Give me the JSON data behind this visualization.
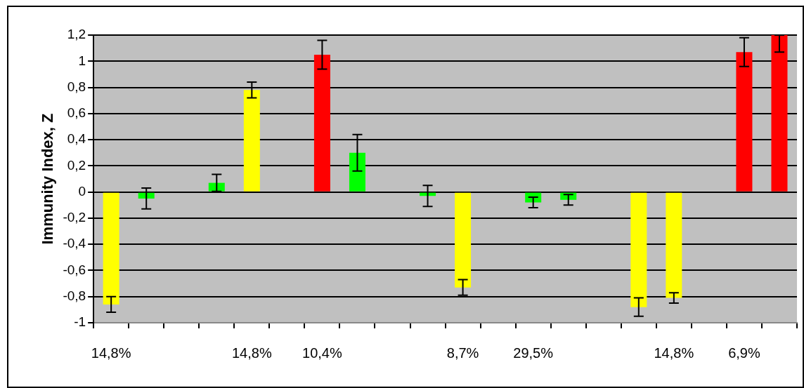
{
  "chart_data": {
    "type": "bar",
    "ylabel": "Immunity Index, Z",
    "categories": [
      "14,8%",
      null,
      null,
      null,
      "14,8%",
      null,
      "10,4%",
      null,
      null,
      null,
      "8,7%",
      null,
      "29,5%",
      null,
      null,
      null,
      "14,8%",
      null,
      "6,9%",
      null
    ],
    "values": [
      -0.86,
      -0.05,
      null,
      0.07,
      0.78,
      null,
      1.05,
      0.3,
      null,
      -0.03,
      -0.73,
      null,
      -0.08,
      -0.06,
      null,
      -0.88,
      -0.81,
      null,
      1.07,
      1.2
    ],
    "colors": [
      "#ffff00",
      "#00ff00",
      null,
      "#00ff00",
      "#ffff00",
      null,
      "#ff0000",
      "#00ff00",
      null,
      "#00ff00",
      "#ffff00",
      null,
      "#00ff00",
      "#00ff00",
      null,
      "#ffff00",
      "#ffff00",
      null,
      "#ff0000",
      "#ff0000"
    ],
    "errors": [
      0.06,
      0.08,
      null,
      0.065,
      0.06,
      null,
      0.11,
      0.14,
      null,
      0.08,
      0.06,
      null,
      0.04,
      0.04,
      null,
      0.07,
      0.04,
      null,
      0.11,
      [
        1.07,
        1.2
      ]
    ],
    "ylim": [
      -1,
      1.2
    ],
    "yticks": [
      {
        "value": -1,
        "label": "-1"
      },
      {
        "value": -0.8,
        "label": "-0,8"
      },
      {
        "value": -0.6,
        "label": "-0,6"
      },
      {
        "value": -0.4,
        "label": "-0,4"
      },
      {
        "value": -0.2,
        "label": "-0,2"
      },
      {
        "value": 0,
        "label": "0"
      },
      {
        "value": 0.2,
        "label": "0,2"
      },
      {
        "value": 0.4,
        "label": "0,4"
      },
      {
        "value": 0.6,
        "label": "0,6"
      },
      {
        "value": 0.8,
        "label": "0,8"
      },
      {
        "value": 1,
        "label": "1"
      },
      {
        "value": 1.2,
        "label": "1,2"
      }
    ],
    "grid": "y",
    "legend": false
  }
}
